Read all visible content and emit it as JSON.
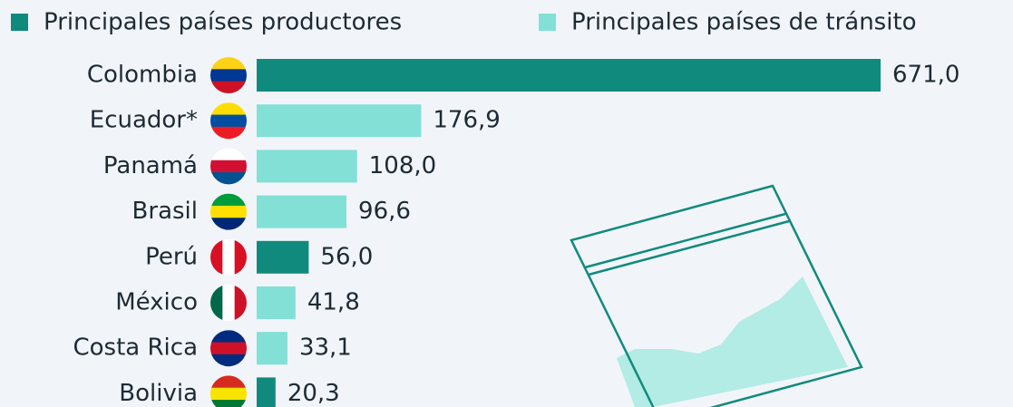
{
  "chart_data": {
    "type": "bar",
    "orientation": "horizontal",
    "legend": [
      {
        "name": "Principales países productores",
        "color": "#118a7e"
      },
      {
        "name": "Principales países de tránsito",
        "color": "#82e0d6"
      }
    ],
    "categories": [
      "Colombia",
      "Ecuador*",
      "Panamá",
      "Brasil",
      "Perú",
      "México",
      "Costa Rica",
      "Bolivia"
    ],
    "values": [
      671.0,
      176.9,
      108.0,
      96.6,
      56.0,
      41.8,
      33.1,
      20.3
    ],
    "value_labels": [
      "671,0",
      "176,9",
      "108,0",
      "96,6",
      "56,0",
      "41,8",
      "33,1",
      "20,3"
    ],
    "colors": [
      "#118a7e",
      "#82e0d6",
      "#82e0d6",
      "#82e0d6",
      "#118a7e",
      "#82e0d6",
      "#82e0d6",
      "#118a7e"
    ],
    "xlim": [
      0,
      671
    ]
  }
}
